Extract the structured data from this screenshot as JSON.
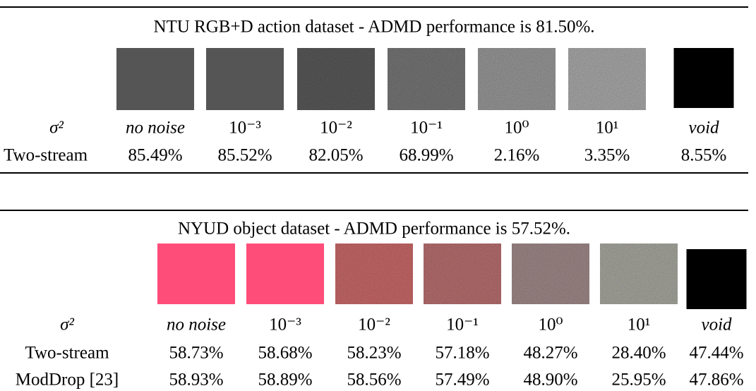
{
  "tables": [
    {
      "caption": "NTU RGB+D action dataset - ADMD performance is 81.50%.",
      "header_label": "σ²",
      "columns": [
        "no noise",
        "10⁻³",
        "10⁻²",
        "10⁻¹",
        "10⁰",
        "10¹",
        "void"
      ],
      "rows": [
        {
          "label": "Two-stream",
          "values": [
            "85.49%",
            "85.52%",
            "82.05%",
            "68.99%",
            "2.16%",
            "3.35%",
            "8.55%"
          ]
        }
      ]
    },
    {
      "caption": "NYUD object dataset - ADMD performance is 57.52%.",
      "header_label": "σ²",
      "columns": [
        "no noise",
        "10⁻³",
        "10⁻²",
        "10⁻¹",
        "10⁰",
        "10¹",
        "void"
      ],
      "rows": [
        {
          "label": "Two-stream",
          "values": [
            "58.73%",
            "58.68%",
            "58.23%",
            "57.18%",
            "48.27%",
            "28.40%",
            "47.44%"
          ]
        },
        {
          "label": "ModDrop [23]",
          "values": [
            "58.93%",
            "58.89%",
            "58.56%",
            "57.49%",
            "48.90%",
            "25.95%",
            "47.86%"
          ]
        }
      ]
    }
  ]
}
